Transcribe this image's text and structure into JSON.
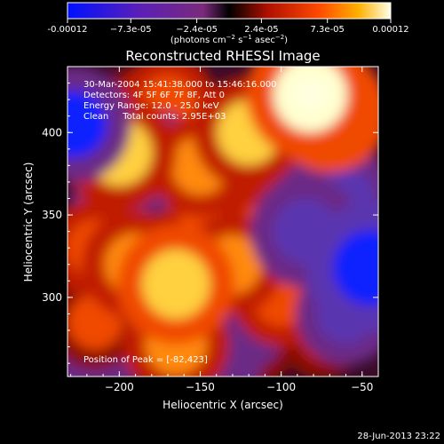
{
  "chart_data": {
    "type": "heatmap",
    "title": "Reconstructed RHESSI Image",
    "xlabel": "Heliocentric X (arcsec)",
    "ylabel": "Heliocentric Y (arcsec)",
    "xlim": [
      -232,
      -40
    ],
    "ylim": [
      252,
      440
    ],
    "x_ticks": [
      "−200",
      "−150",
      "−100",
      "−50"
    ],
    "x_tick_values": [
      -200,
      -150,
      -100,
      -50
    ],
    "y_ticks": [
      "400",
      "350",
      "300"
    ],
    "y_tick_values": [
      400,
      350,
      300
    ],
    "colorbar": {
      "min": -0.00012,
      "max": 0.00012,
      "ticks": [
        "-0.00012",
        "−7.3e-05",
        "−2.4e-05",
        "2.4e-05",
        "7.3e-05",
        "0.00012"
      ],
      "tick_values": [
        -0.00012,
        -7.3e-05,
        -2.4e-05,
        2.4e-05,
        7.3e-05,
        0.00012
      ],
      "unit_prefix": "(photons cm",
      "unit_exp1": "−2",
      "unit_mid": " s",
      "unit_exp2": "−1",
      "unit_mid2": " asec",
      "unit_exp3": "−2",
      "unit_suffix": ")"
    },
    "annotations": [
      "30-Mar-2004 15:41:38.000 to 15:46:16.000",
      "Detectors: 4F 5F 6F 7F 8F, Att 0",
      "Energy Range: 12.0 - 25.0 keV",
      "Clean     Total counts: 2.95E+03"
    ],
    "peak_label": "Position of Peak = [-82,423]",
    "peak": [
      -82,
      423
    ],
    "blobs": [
      {
        "x": -82,
        "y": 423,
        "v": 1.0
      },
      {
        "x": -70,
        "y": 412,
        "v": 0.85
      },
      {
        "x": -120,
        "y": 400,
        "v": 0.75
      },
      {
        "x": -200,
        "y": 388,
        "v": 0.8
      },
      {
        "x": -150,
        "y": 380,
        "v": 0.6
      },
      {
        "x": -170,
        "y": 418,
        "v": 0.55
      },
      {
        "x": -190,
        "y": 410,
        "v": 0.5
      },
      {
        "x": -145,
        "y": 350,
        "v": 0.55
      },
      {
        "x": -165,
        "y": 308,
        "v": 0.85
      },
      {
        "x": -190,
        "y": 320,
        "v": 0.7
      },
      {
        "x": -215,
        "y": 330,
        "v": 0.55
      },
      {
        "x": -130,
        "y": 320,
        "v": 0.6
      },
      {
        "x": -110,
        "y": 340,
        "v": 0.55
      },
      {
        "x": -100,
        "y": 300,
        "v": 0.55
      },
      {
        "x": -165,
        "y": 272,
        "v": 0.7
      },
      {
        "x": -215,
        "y": 285,
        "v": 0.5
      },
      {
        "x": -120,
        "y": 270,
        "v": 0.4
      },
      {
        "x": -75,
        "y": 275,
        "v": 0.3
      },
      {
        "x": -228,
        "y": 405,
        "v": -0.8
      },
      {
        "x": -178,
        "y": 383,
        "v": -0.55
      },
      {
        "x": -100,
        "y": 380,
        "v": -0.4
      },
      {
        "x": -85,
        "y": 340,
        "v": -0.75
      },
      {
        "x": -60,
        "y": 360,
        "v": -0.6
      },
      {
        "x": -45,
        "y": 318,
        "v": -1.0
      },
      {
        "x": -60,
        "y": 290,
        "v": -0.6
      },
      {
        "x": -205,
        "y": 355,
        "v": -0.35
      },
      {
        "x": -125,
        "y": 282,
        "v": -0.45
      },
      {
        "x": -180,
        "y": 290,
        "v": -0.4
      },
      {
        "x": -140,
        "y": 255,
        "v": -0.4
      },
      {
        "x": -215,
        "y": 262,
        "v": -0.4
      }
    ]
  },
  "footer": {
    "timestamp": "28-Jun-2013 23:22"
  }
}
